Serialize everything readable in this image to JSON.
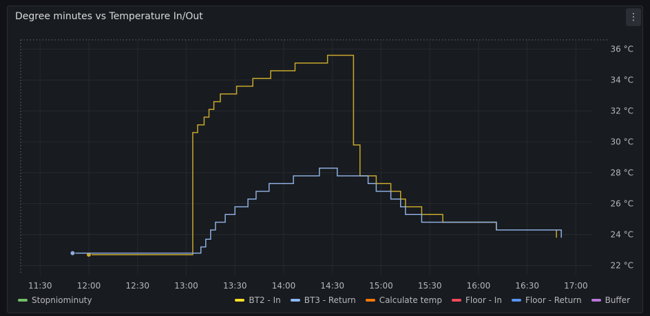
{
  "panel": {
    "title": "Degree minutes vs Temperature In/Out",
    "menu_icon": "kebab-menu-icon",
    "menu_glyph": "⋮"
  },
  "legend_left": [
    {
      "label": "Stopniominuty",
      "color": "#73bf69"
    }
  ],
  "legend_right": [
    {
      "label": "BT2 - In",
      "color": "#fade2a"
    },
    {
      "label": "BT3 - Return",
      "color": "#8ab8ff"
    },
    {
      "label": "Calculate temp",
      "color": "#ff780a"
    },
    {
      "label": "Floor - In",
      "color": "#f2495c"
    },
    {
      "label": "Floor - Return",
      "color": "#5794f2"
    },
    {
      "label": "Buffer",
      "color": "#b877d9"
    }
  ],
  "chart_data": {
    "type": "line",
    "x_ticks": [
      "11:30",
      "12:00",
      "12:30",
      "13:00",
      "13:30",
      "14:00",
      "14:30",
      "15:00",
      "15:30",
      "16:00",
      "16:30",
      "17:00"
    ],
    "y_ticks": [
      "22 °C",
      "24 °C",
      "26 °C",
      "28 °C",
      "30 °C",
      "32 °C",
      "34 °C",
      "36 °C"
    ],
    "xlim": [
      "11:18",
      "17:10"
    ],
    "ylim": [
      21.4,
      36.6
    ],
    "grid": true,
    "legend_position": "bottom",
    "series": [
      {
        "name": "BT2 - In",
        "color": "#c8a92d",
        "step": true,
        "points": [
          [
            "12:00",
            22.7
          ],
          [
            "13:04",
            30.6
          ],
          [
            "13:07",
            31.1
          ],
          [
            "13:11",
            31.6
          ],
          [
            "13:14",
            32.1
          ],
          [
            "13:17",
            32.6
          ],
          [
            "13:21",
            33.1
          ],
          [
            "13:31",
            33.6
          ],
          [
            "13:41",
            34.1
          ],
          [
            "13:52",
            34.6
          ],
          [
            "14:07",
            35.1
          ],
          [
            "14:27",
            35.6
          ],
          [
            "14:43",
            29.8
          ],
          [
            "14:47",
            27.8
          ],
          [
            "14:52",
            27.8
          ],
          [
            "14:57",
            27.3
          ],
          [
            "15:06",
            26.8
          ],
          [
            "15:12",
            26.3
          ],
          [
            "15:15",
            25.8
          ],
          [
            "15:25",
            25.3
          ],
          [
            "15:38",
            24.8
          ],
          [
            "15:49",
            24.8
          ],
          [
            "16:11",
            24.3
          ],
          [
            "16:48",
            24.3
          ],
          [
            "16:48",
            23.8
          ]
        ]
      },
      {
        "name": "BT3 - Return",
        "color": "#8eaee0",
        "step": true,
        "points": [
          [
            "11:50",
            22.8
          ],
          [
            "13:04",
            22.8
          ],
          [
            "13:09",
            23.2
          ],
          [
            "13:12",
            23.7
          ],
          [
            "13:15",
            24.3
          ],
          [
            "13:18",
            24.8
          ],
          [
            "13:24",
            25.3
          ],
          [
            "13:30",
            25.8
          ],
          [
            "13:38",
            26.3
          ],
          [
            "13:43",
            26.8
          ],
          [
            "13:51",
            27.3
          ],
          [
            "14:06",
            27.8
          ],
          [
            "14:22",
            28.3
          ],
          [
            "14:33",
            27.8
          ],
          [
            "14:43",
            27.8
          ],
          [
            "14:52",
            27.3
          ],
          [
            "14:57",
            26.8
          ],
          [
            "15:06",
            26.3
          ],
          [
            "15:12",
            25.8
          ],
          [
            "15:15",
            25.3
          ],
          [
            "15:25",
            24.8
          ],
          [
            "15:38",
            24.8
          ],
          [
            "15:49",
            24.8
          ],
          [
            "16:11",
            24.3
          ],
          [
            "16:51",
            24.3
          ],
          [
            "16:51",
            23.8
          ]
        ]
      }
    ]
  }
}
